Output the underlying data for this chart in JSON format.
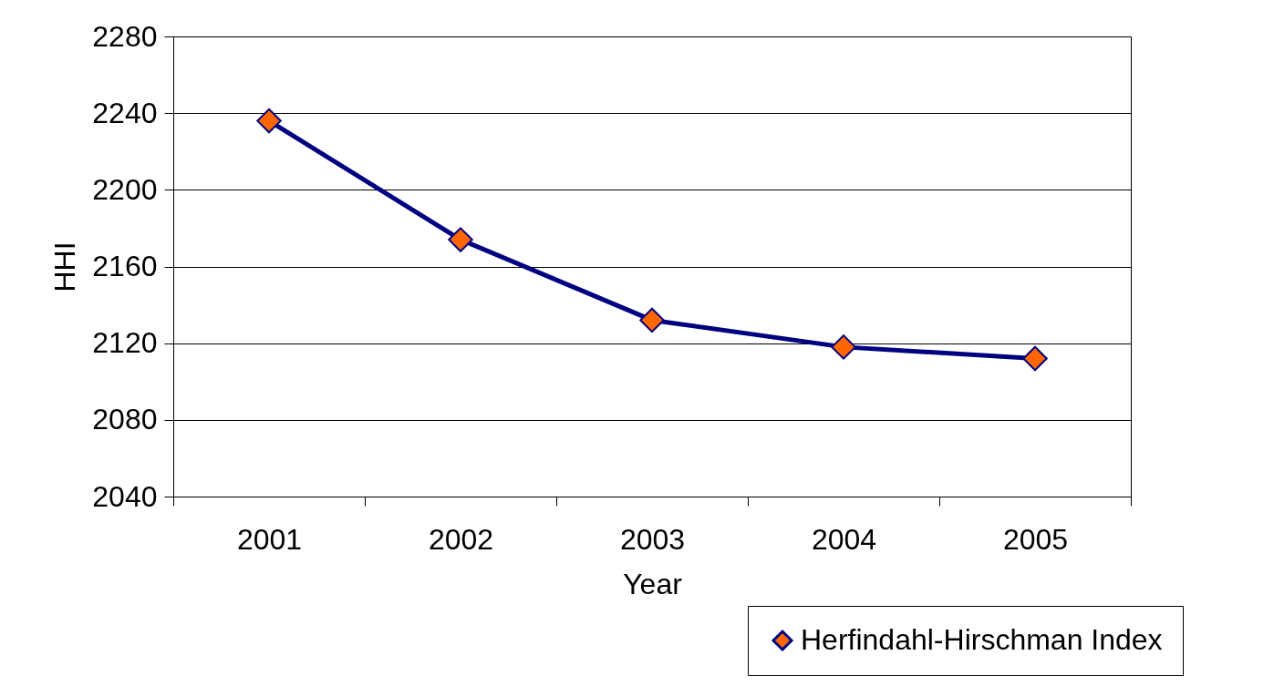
{
  "chart_data": {
    "type": "line",
    "xlabel": "Year",
    "ylabel": "HHI",
    "categories": [
      "2001",
      "2002",
      "2003",
      "2004",
      "2005"
    ],
    "series": [
      {
        "name": "Herfindahl-Hirschman Index",
        "color": "#000080",
        "values": [
          2236,
          2174,
          2132,
          2118,
          2112
        ]
      }
    ],
    "ylim": [
      2040,
      2280
    ],
    "yticks": [
      2040,
      2080,
      2120,
      2160,
      2200,
      2240,
      2280
    ],
    "grid": "y",
    "legend": "bottom right",
    "marker": "diamond",
    "line_style": "solid"
  }
}
